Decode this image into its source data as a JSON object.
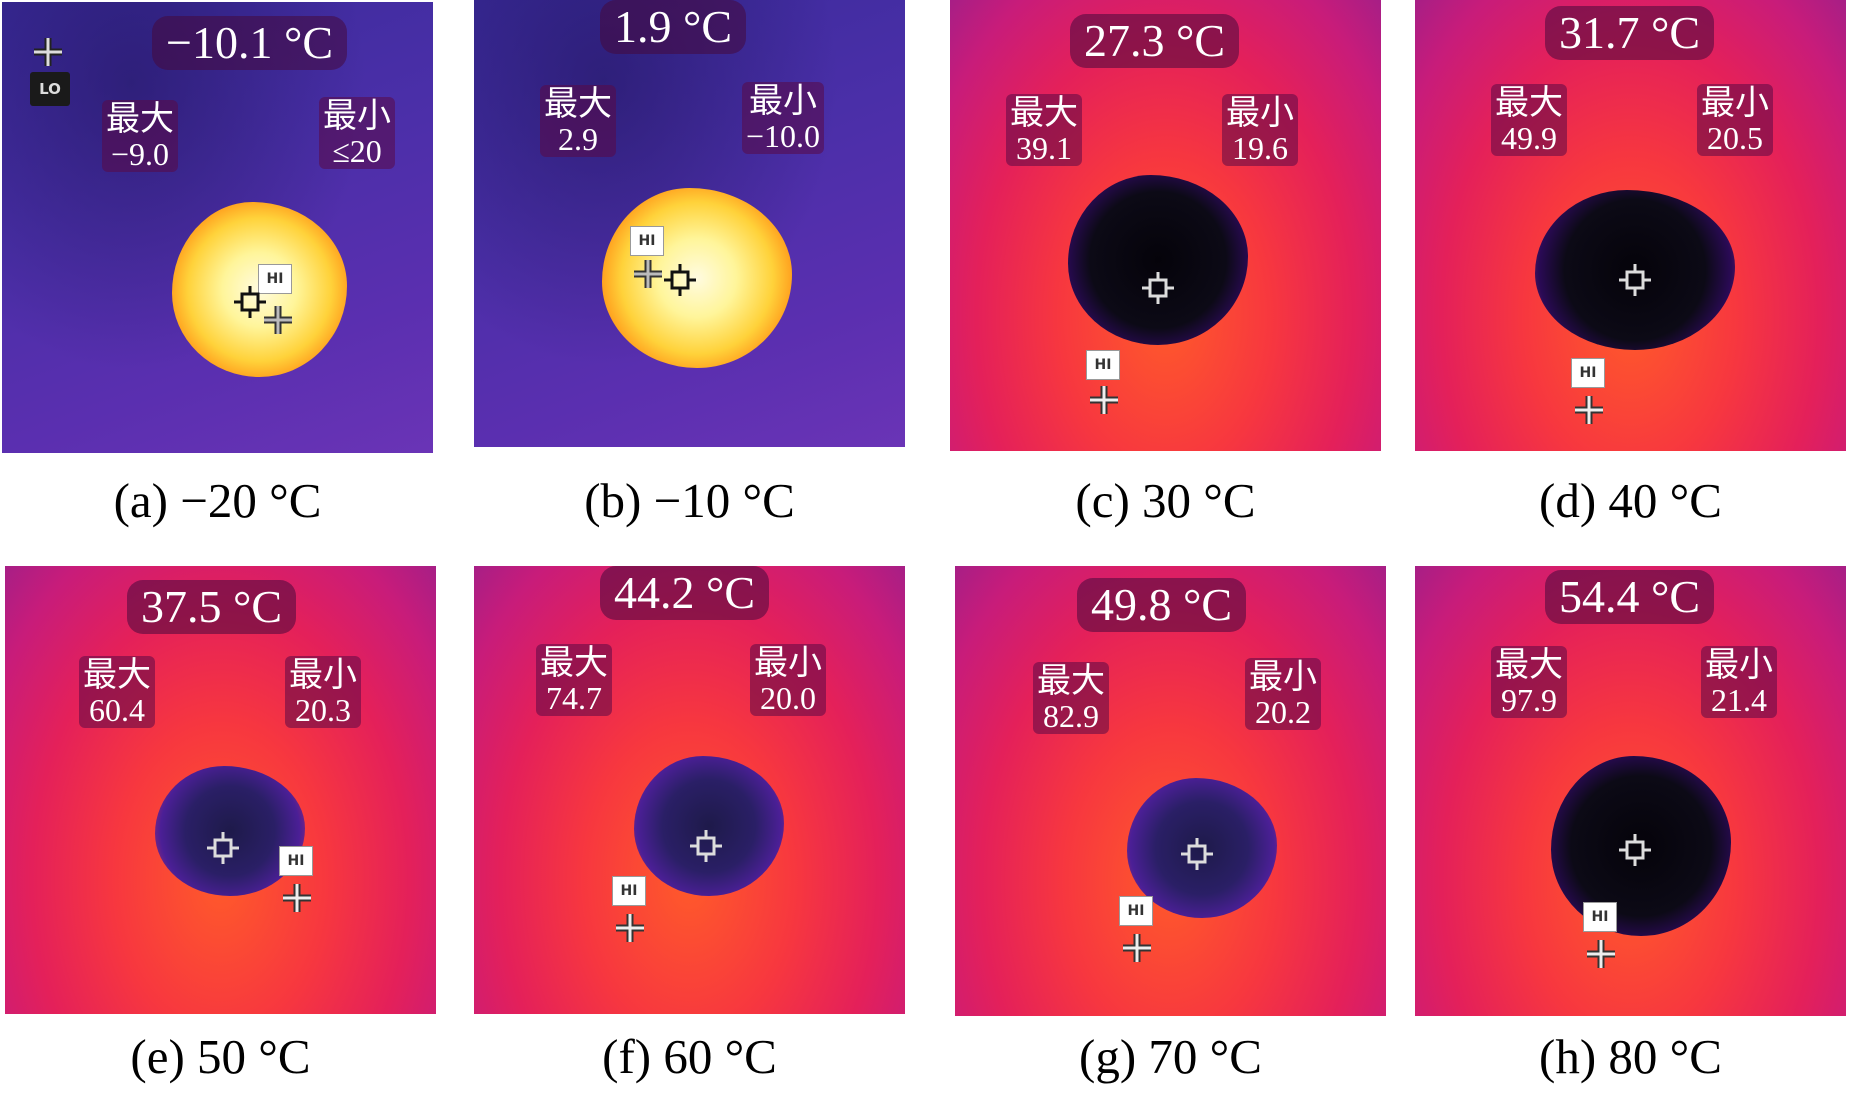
{
  "panels": [
    {
      "temp": "−10.1 °C",
      "max_label": "最大",
      "max": "−9.0",
      "min_label": "最小",
      "min": "≤20",
      "caption": "(a) −20 °C"
    },
    {
      "temp": "1.9 °C",
      "max_label": "最大",
      "max": "2.9",
      "min_label": "最小",
      "min": "−10.0",
      "caption": "(b) −10 °C"
    },
    {
      "temp": "27.3 °C",
      "max_label": "最大",
      "max": "39.1",
      "min_label": "最小",
      "min": "19.6",
      "caption": "(c) 30 °C"
    },
    {
      "temp": "31.7 °C",
      "max_label": "最大",
      "max": "49.9",
      "min_label": "最小",
      "min": "20.5",
      "caption": "(d) 40 °C"
    },
    {
      "temp": "37.5 °C",
      "max_label": "最大",
      "max": "60.4",
      "min_label": "最小",
      "min": "20.3",
      "caption": "(e) 50 °C"
    },
    {
      "temp": "44.2 °C",
      "max_label": "最大",
      "max": "74.7",
      "min_label": "最小",
      "min": "20.0",
      "caption": "(f) 60 °C"
    },
    {
      "temp": "49.8 °C",
      "max_label": "最大",
      "max": "82.9",
      "min_label": "最小",
      "min": "20.2",
      "caption": "(g) 70 °C"
    },
    {
      "temp": "54.4 °C",
      "max_label": "最大",
      "max": "97.9",
      "min_label": "最小",
      "min": "21.4",
      "caption": "(h) 80 °C"
    }
  ],
  "tags": {
    "hi": "HI",
    "lo": "LO"
  }
}
